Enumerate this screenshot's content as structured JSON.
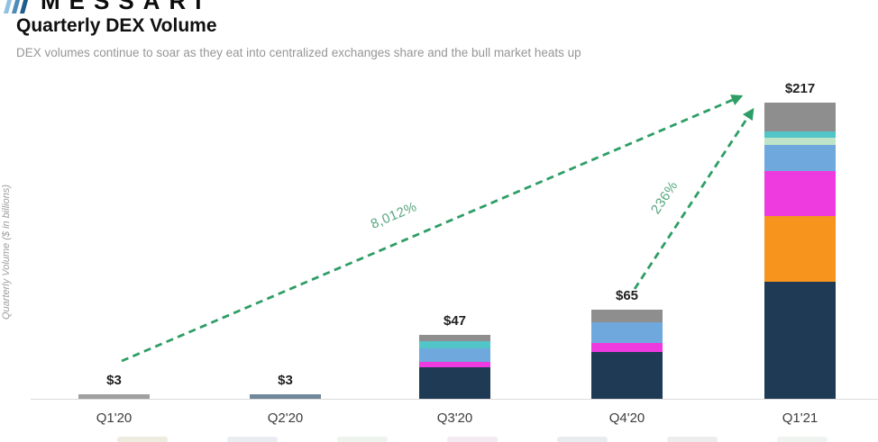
{
  "page": {
    "logo_text": "MESSARI",
    "title": "Quarterly DEX Volume",
    "subtitle": "DEX volumes continue to soar as they eat into centralized exchanges share and the bull market heats up"
  },
  "chart_data": {
    "type": "bar",
    "stacked": true,
    "title": "Quarterly DEX Volume",
    "ylabel": "Quarterly Volume ($ in billions)",
    "unit": "$ in billions",
    "categories": [
      "Q1'20",
      "Q2'20",
      "Q3'20",
      "Q4'20",
      "Q1'21"
    ],
    "totals_labels": [
      "$3",
      "$3",
      "$47",
      "$65",
      "$217"
    ],
    "totals_billions": [
      3,
      3,
      47,
      65,
      217
    ],
    "segment_colors": {
      "lightgray": "#a0a0a0",
      "slate": "#71889b",
      "navy": "#1f3a54",
      "orange": "#f7941d",
      "magenta": "#ee3be0",
      "blue": "#6fa8dc",
      "mint": "#bfe5c8",
      "teal": "#52c5c9",
      "gray": "#8e8e8e"
    },
    "bars": [
      {
        "category": "Q1'20",
        "total_label": "$3",
        "segments": [
          {
            "name": "lightgray",
            "value": 3
          }
        ]
      },
      {
        "category": "Q2'20",
        "total_label": "$3",
        "segments": [
          {
            "name": "slate",
            "value": 3
          }
        ]
      },
      {
        "category": "Q3'20",
        "total_label": "$47",
        "segments": [
          {
            "name": "navy",
            "value": 23
          },
          {
            "name": "magenta",
            "value": 4
          },
          {
            "name": "blue",
            "value": 10
          },
          {
            "name": "teal",
            "value": 5
          },
          {
            "name": "gray",
            "value": 5
          }
        ]
      },
      {
        "category": "Q4'20",
        "total_label": "$65",
        "segments": [
          {
            "name": "navy",
            "value": 34
          },
          {
            "name": "magenta",
            "value": 7
          },
          {
            "name": "blue",
            "value": 15
          },
          {
            "name": "gray",
            "value": 9
          }
        ]
      },
      {
        "category": "Q1'21",
        "total_label": "$217",
        "segments": [
          {
            "name": "navy",
            "value": 86
          },
          {
            "name": "orange",
            "value": 48
          },
          {
            "name": "magenta",
            "value": 33
          },
          {
            "name": "blue",
            "value": 19
          },
          {
            "name": "mint",
            "value": 5
          },
          {
            "name": "teal",
            "value": 5
          },
          {
            "name": "gray",
            "value": 21
          }
        ]
      }
    ],
    "annotations": [
      {
        "label": "8,012%",
        "from_category": "Q1'20",
        "to_category": "Q1'21"
      },
      {
        "label": "236%",
        "from_category": "Q4'20",
        "to_category": "Q1'21"
      }
    ],
    "accent_green_arrow": "#2e9e66",
    "accent_green_label": "#57a77f",
    "legend_cutoff": true,
    "legend_cutoff_colors": [
      "#d9d2b8",
      "#cfd8e2",
      "#d8e6d8",
      "#e6d0e0",
      "#ccd4dc",
      "#d8d8d8",
      "#dde6dd"
    ]
  }
}
